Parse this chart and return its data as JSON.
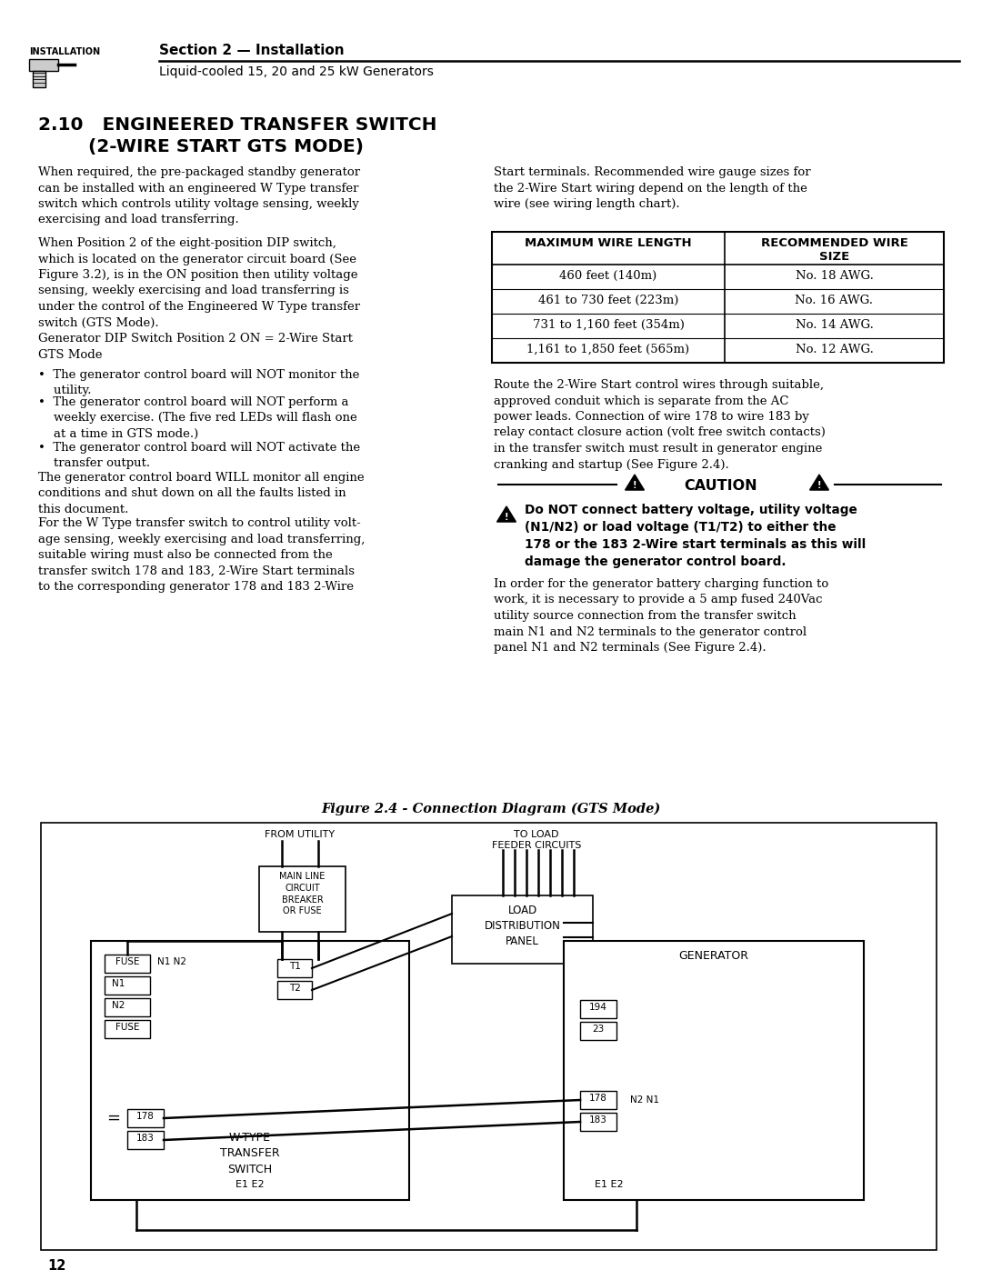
{
  "page_bg": "#ffffff",
  "header_section_text": "Section 2 — Installation",
  "header_sub_text": "Liquid-cooled 15, 20 and 25 kW Generators",
  "installation_label": "INSTALLATION",
  "title_line1": "2.10   ENGINEERED TRANSFER SWITCH",
  "title_line2": "(2-WIRE START GTS MODE)",
  "para1": "When required, the pre-packaged standby generator\ncan be installed with an engineered W Type transfer\nswitch which controls utility voltage sensing, weekly\nexercising and load transferring.",
  "para2": "When Position 2 of the eight-position DIP switch,\nwhich is located on the generator circuit board (See\nFigure 3.2), is in the ON position then utility voltage\nsensing, weekly exercising and load transferring is\nunder the control of the Engineered W Type transfer\nswitch (GTS Mode).",
  "para3": "Generator DIP Switch Position 2 ON = 2-Wire Start\nGTS Mode",
  "bullet1": "•  The generator control board will NOT monitor the\n    utility.",
  "bullet2": "•  The generator control board will NOT perform a\n    weekly exercise. (The five red LEDs will flash one\n    at a time in GTS mode.)",
  "bullet3": "•  The generator control board will NOT activate the\n    transfer output.",
  "para4": "The generator control board WILL monitor all engine\nconditions and shut down on all the faults listed in\nthis document.",
  "para5": "For the W Type transfer switch to control utility volt-\nage sensing, weekly exercising and load transferring,\nsuitable wiring must also be connected from the\ntransfer switch 178 and 183, 2-Wire Start terminals\nto the corresponding generator 178 and 183 2-Wire",
  "right_para1": "Start terminals. Recommended wire gauge sizes for\nthe 2-Wire Start wiring depend on the length of the\nwire (see wiring length chart).",
  "table_header1": "MAXIMUM WIRE LENGTH",
  "table_header2": "RECOMMENDED WIRE\nSIZE",
  "table_rows": [
    [
      "460 feet (140m)",
      "No. 18 AWG."
    ],
    [
      "461 to 730 feet (223m)",
      "No. 16 AWG."
    ],
    [
      "731 to 1,160 feet (354m)",
      "No. 14 AWG."
    ],
    [
      "1,161 to 1,850 feet (565m)",
      "No. 12 AWG."
    ]
  ],
  "right_para2": "Route the 2-Wire Start control wires through suitable,\napproved conduit which is separate from the AC\npower leads. Connection of wire 178 to wire 183 by\nrelay contact closure action (volt free switch contacts)\nin the transfer switch must result in generator engine\ncranking and startup (See Figure 2.4).",
  "caution_text": "CAUTION",
  "caution_bold": "Do NOT connect battery voltage, utility voltage\n(N1/N2) or load voltage (T1/T2) to either the\n178 or the 183 2-Wire start terminals as this will\ndamage the generator control board.",
  "right_para3": "In order for the generator battery charging function to\nwork, it is necessary to provide a 5 amp fused 240Vac\nutility source connection from the transfer switch\nmain N1 and N2 terminals to the generator control\npanel N1 and N2 terminals (See Figure 2.4).",
  "figure_caption": "Figure 2.4 - Connection Diagram (GTS Mode)",
  "page_number": "12"
}
